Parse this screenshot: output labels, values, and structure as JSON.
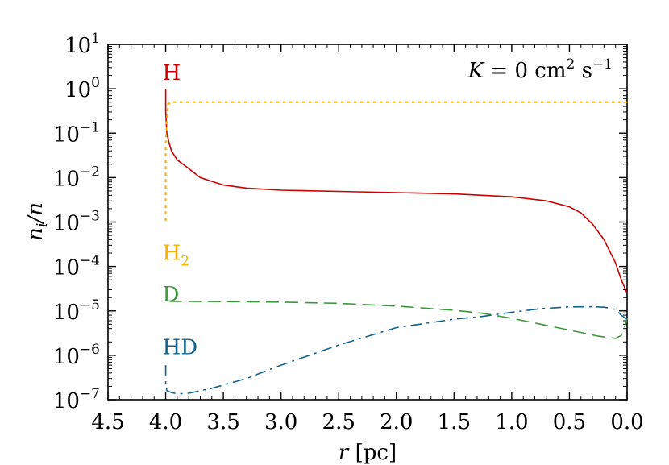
{
  "chart_data": {
    "type": "line",
    "title": "",
    "annotation": {
      "prefix": "K",
      "equals": " = 0 cm",
      "cm_exp": "2",
      "s_unit": " s",
      "s_exp": "−1"
    },
    "xlabel": {
      "var": "r",
      "unit": "  [pc]"
    },
    "ylabel": {
      "var": "n",
      "sub": "i",
      "rest": "/n"
    },
    "x_reversed": true,
    "xlim": [
      4.5,
      0.0
    ],
    "y_log": true,
    "ylim": [
      1e-07,
      10
    ],
    "grid": false,
    "x_ticks": [
      "4.5",
      "4.0",
      "3.5",
      "3.0",
      "2.5",
      "2.0",
      "1.5",
      "1.0",
      "0.5",
      "0.0"
    ],
    "x_tick_values": [
      4.5,
      4.0,
      3.5,
      3.0,
      2.5,
      2.0,
      1.5,
      1.0,
      0.5,
      0.0
    ],
    "y_ticks": [
      {
        "base": "10",
        "exp": "1",
        "value": 10
      },
      {
        "base": "10",
        "exp": "0",
        "value": 1
      },
      {
        "base": "10",
        "exp": "−1",
        "value": 0.1
      },
      {
        "base": "10",
        "exp": "−2",
        "value": 0.01
      },
      {
        "base": "10",
        "exp": "−3",
        "value": 0.001
      },
      {
        "base": "10",
        "exp": "−4",
        "value": 0.0001
      },
      {
        "base": "10",
        "exp": "−5",
        "value": 1e-05
      },
      {
        "base": "10",
        "exp": "−6",
        "value": 1e-06
      },
      {
        "base": "10",
        "exp": "−7",
        "value": 1e-07
      }
    ],
    "series": [
      {
        "name": "H",
        "sub": "",
        "color": "#cc0000",
        "dash": "solid",
        "label_at": [
          4.0,
          1.6
        ],
        "x": [
          4.0,
          4.0,
          3.99,
          3.97,
          3.95,
          3.9,
          3.8,
          3.7,
          3.5,
          3.3,
          3.0,
          2.5,
          2.0,
          1.5,
          1.0,
          0.7,
          0.5,
          0.4,
          0.3,
          0.2,
          0.1,
          0.05,
          0.0
        ],
        "y": [
          1.0,
          0.3,
          0.1,
          0.06,
          0.04,
          0.025,
          0.016,
          0.01,
          0.0068,
          0.0058,
          0.0052,
          0.0049,
          0.0046,
          0.0043,
          0.0037,
          0.003,
          0.0022,
          0.0016,
          0.0009,
          0.0004,
          0.00012,
          5e-05,
          2.5e-05
        ]
      },
      {
        "name": "H",
        "sub": "2",
        "color": "#f5b000",
        "dash": "dotted",
        "label_at": [
          4.0,
          0.00014
        ],
        "x": [
          4.0,
          4.0,
          4.0,
          3.99,
          3.98,
          3.95,
          3.5,
          3.0,
          2.0,
          1.0,
          0.0
        ],
        "y": [
          0.0011,
          0.01,
          0.06,
          0.2,
          0.45,
          0.5,
          0.5,
          0.5,
          0.5,
          0.5,
          0.5
        ]
      },
      {
        "name": "D",
        "sub": "",
        "color": "#3a9a3a",
        "dash": "dashed",
        "label_at": [
          4.0,
          1.65e-05
        ],
        "x": [
          3.97,
          3.5,
          3.0,
          2.5,
          2.0,
          1.5,
          1.25,
          1.0,
          0.75,
          0.5,
          0.25,
          0.1,
          0.05,
          0.02,
          0.0
        ],
        "y": [
          1.65e-05,
          1.62e-05,
          1.58e-05,
          1.48e-05,
          1.28e-05,
          1.03e-05,
          8.8e-06,
          6.8e-06,
          5e-06,
          3.7e-06,
          2.7e-06,
          2.4e-06,
          2.8e-06,
          4.5e-06,
          6.8e-06
        ]
      },
      {
        "name": "HD",
        "sub": "",
        "color": "#11638f",
        "dash": "dashdot",
        "label_at": [
          4.0,
          1.05e-06
        ],
        "x": [
          4.0,
          4.0,
          3.99,
          3.95,
          3.9,
          3.8,
          3.6,
          3.3,
          3.0,
          2.5,
          2.0,
          1.5,
          1.25,
          1.0,
          0.75,
          0.5,
          0.3,
          0.2,
          0.1,
          0.05,
          0.0
        ],
        "y": [
          6e-07,
          2.2e-07,
          1.6e-07,
          1.45e-07,
          1.35e-07,
          1.4e-07,
          1.8e-07,
          3e-07,
          6e-07,
          1.7e-06,
          4.2e-06,
          6.5e-06,
          7.5e-06,
          9.3e-06,
          1.12e-05,
          1.23e-05,
          1.24e-05,
          1.21e-05,
          1.08e-05,
          8e-06,
          6.5e-06
        ]
      }
    ]
  }
}
